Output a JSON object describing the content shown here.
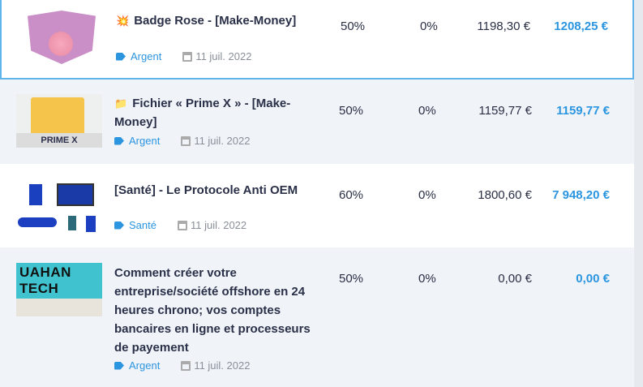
{
  "rows": [
    {
      "emoji": "💥",
      "title": "Badge Rose - [Make-Money]",
      "category": "Argent",
      "date": "11 juil. 2022",
      "commission": "50%",
      "col2": "0%",
      "price": "1198,30 €",
      "total": "1208,25 €",
      "thumb_text": ""
    },
    {
      "emoji": "📁",
      "title": "Fichier « Prime X » - [Make-Money]",
      "category": "Argent",
      "date": "11 juil. 2022",
      "commission": "50%",
      "col2": "0%",
      "price": "1159,77 €",
      "total": "1159,77 €",
      "thumb_text": "PRIME X"
    },
    {
      "emoji": "",
      "title": "[Santé] - Le Protocole Anti OEM",
      "category": "Santé",
      "date": "11 juil. 2022",
      "commission": "60%",
      "col2": "0%",
      "price": "1800,60 €",
      "total": "7 948,20 €",
      "thumb_text": ""
    },
    {
      "emoji": "",
      "title": "Comment créer votre entreprise/société offshore en 24 heures chrono; vos comptes bancaires en ligne et processeurs de payement",
      "category": "Argent",
      "date": "11 juil. 2022",
      "commission": "50%",
      "col2": "0%",
      "price": "0,00 €",
      "total": "0,00 €",
      "thumb_text": "UAHAN TECH"
    }
  ],
  "colors": {
    "accent": "#2b95e0",
    "selected_border": "#5fb4ea",
    "alt_row": "#f0f3f8"
  }
}
